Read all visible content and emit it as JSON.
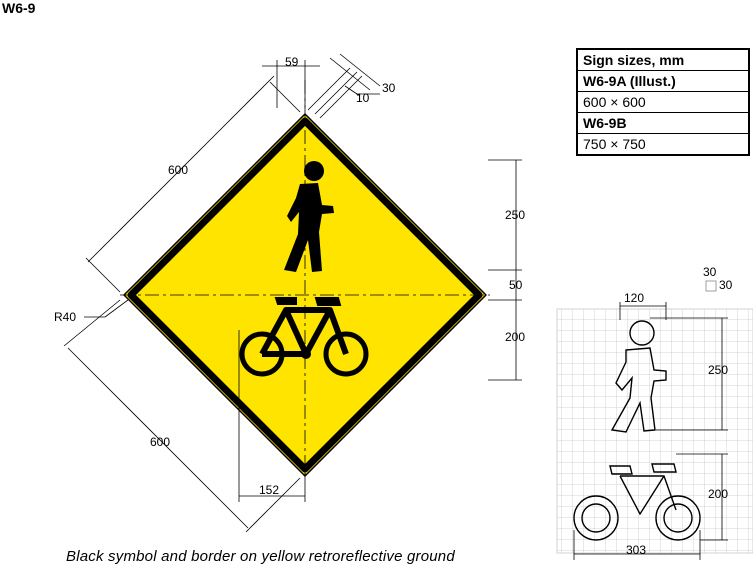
{
  "title": "W6-9",
  "sizes_table": {
    "header": "Sign sizes, mm",
    "rows": [
      {
        "code": "W6-9A (Illust.)",
        "size": "600 × 600"
      },
      {
        "code": "W6-9B",
        "size": "750 × 750"
      }
    ]
  },
  "dimensions": {
    "top_offset": "59",
    "border_width": "30",
    "border_gap": "10",
    "side_upper": "600",
    "side_lower": "600",
    "corner_radius": "R40",
    "pedestrian_height": "250",
    "symbol_gap": "50",
    "bicycle_height": "200",
    "bicycle_offset": "152"
  },
  "grid_detail": {
    "grid_label_a": "30",
    "grid_label_b": "30",
    "pedestrian_width": "120",
    "pedestrian_height": "250",
    "bicycle_height": "200",
    "bicycle_width": "303"
  },
  "caption": "Black symbol and border on yellow retroreflective ground",
  "colors": {
    "sign_ground": "#FFE400",
    "symbol_border": "#000000"
  }
}
